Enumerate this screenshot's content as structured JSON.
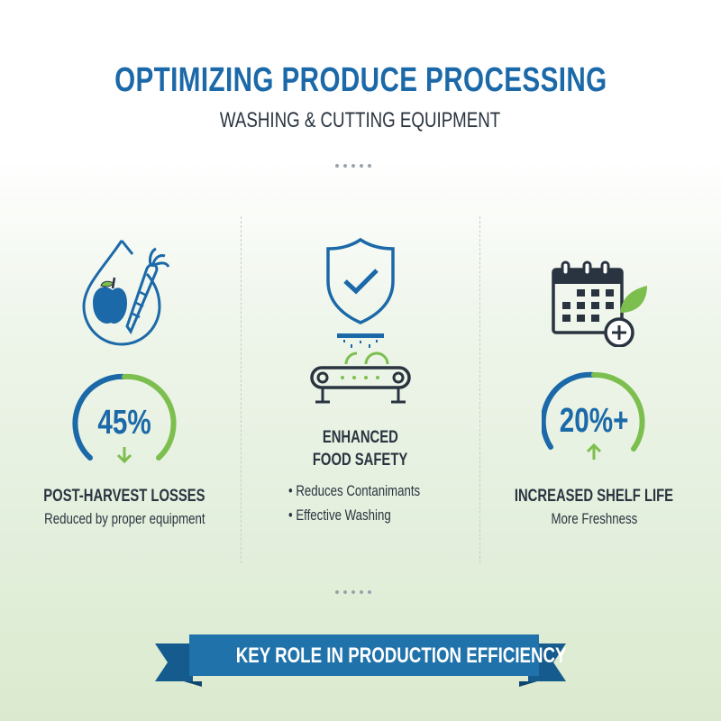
{
  "header": {
    "title": "OPTIMIZING PRODUCE PROCESSING",
    "subtitle": "WASHING & CUTTING EQUIPMENT"
  },
  "colors": {
    "blue": "#1b69a8",
    "green": "#7dbf4e",
    "dark": "#2a3440",
    "banner": "#1f72aa"
  },
  "columns": [
    {
      "icon": "water-drop-produce-icon",
      "gauge_value": "45%",
      "gauge_arrow": "down",
      "heading": "POST-HARVEST LOSSES",
      "text": "Reduced by proper equipment"
    },
    {
      "icon": "shield-conveyor-icon",
      "heading_line1": "ENHANCED",
      "heading_line2": "FOOD SAFETY",
      "bullets": [
        "Reduces Contanimants",
        "Effective Washing"
      ]
    },
    {
      "icon": "calendar-leaf-plus-icon",
      "gauge_value": "20%+",
      "gauge_arrow": "up",
      "heading": "INCREASED SHELF LIFE",
      "text": "More Freshness"
    }
  ],
  "banner": {
    "label": "KEY ROLE IN PRODUCTION EFFICIENCY"
  }
}
